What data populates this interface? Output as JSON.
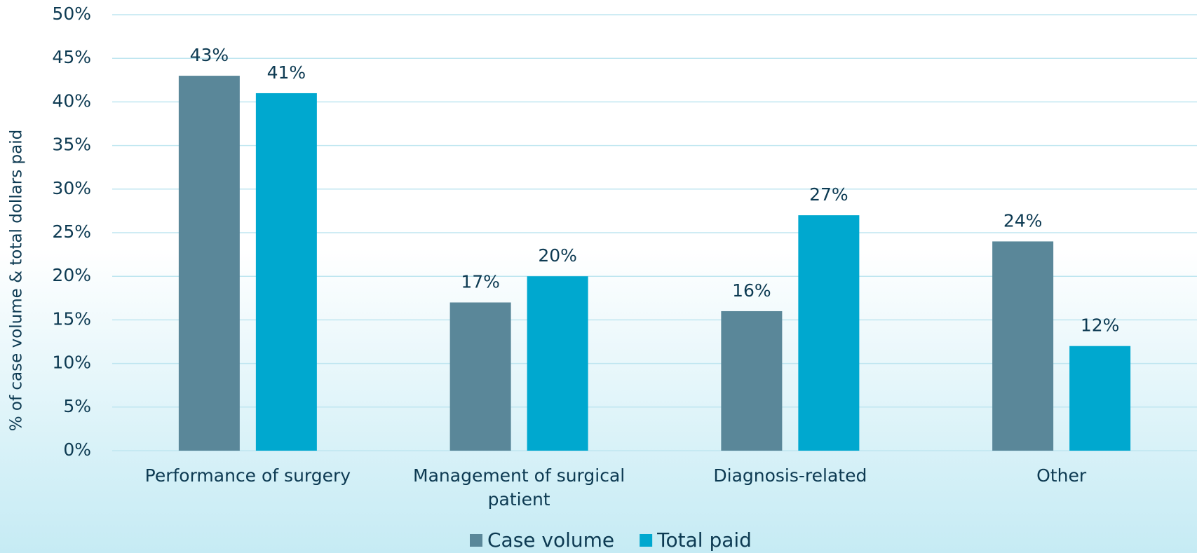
{
  "chart_data": {
    "type": "bar",
    "y_axis_label": "% of case volume & total dollars paid",
    "categories": [
      "Performance of surgery",
      "Management of surgical patient",
      "Diagnosis-related",
      "Other"
    ],
    "series": [
      {
        "name": "Case volume",
        "color": "#5a8799",
        "values": [
          43,
          17,
          16,
          24
        ],
        "value_labels": [
          "43%",
          "17%",
          "16%",
          "24%"
        ]
      },
      {
        "name": "Total paid",
        "color": "#00a8cf",
        "values": [
          41,
          20,
          27,
          12
        ],
        "value_labels": [
          "41%",
          "20%",
          "27%",
          "12%"
        ]
      }
    ],
    "ylim": [
      0,
      50
    ],
    "yticks": [
      {
        "value": 0,
        "label": "0%"
      },
      {
        "value": 5,
        "label": "5%"
      },
      {
        "value": 10,
        "label": "10%"
      },
      {
        "value": 15,
        "label": "15%"
      },
      {
        "value": 20,
        "label": "20%"
      },
      {
        "value": 25,
        "label": "25%"
      },
      {
        "value": 30,
        "label": "30%"
      },
      {
        "value": 35,
        "label": "35%"
      },
      {
        "value": 40,
        "label": "40%"
      },
      {
        "value": 45,
        "label": "45%"
      },
      {
        "value": 50,
        "label": "50%"
      }
    ],
    "grid": true,
    "legend": "bottom"
  }
}
